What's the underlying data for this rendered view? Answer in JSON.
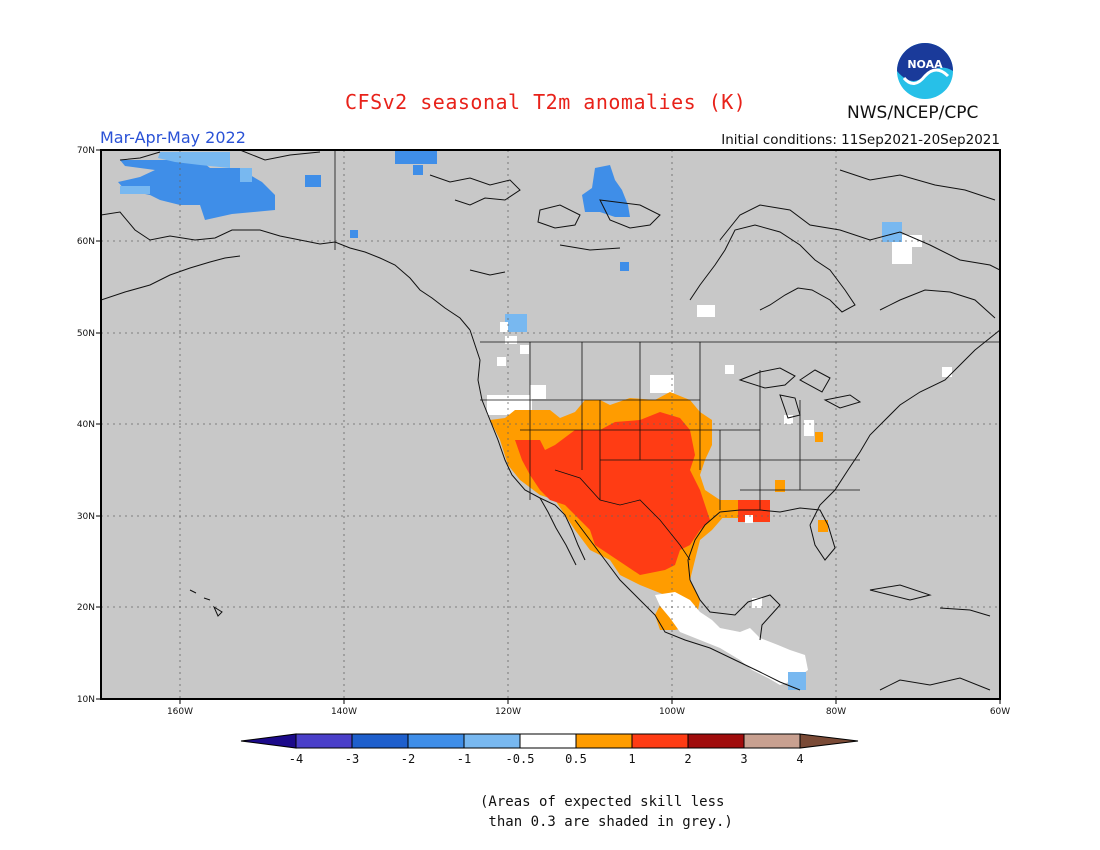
{
  "title": "CFSv2 seasonal T2m anomalies (K)",
  "period": "Mar-Apr-May 2022",
  "initial_conditions": "Initial conditions: 11Sep2021-20Sep2021",
  "agency": "NWS/NCEP/CPC",
  "logo_text": "NOAA",
  "lat_labels": [
    "70N",
    "60N",
    "50N",
    "40N",
    "30N",
    "20N",
    "10N"
  ],
  "lon_labels": [
    "160W",
    "140W",
    "120W",
    "100W",
    "80W",
    "60W"
  ],
  "colorbar": {
    "labels": [
      "-4",
      "-3",
      "-2",
      "-1",
      "-0.5",
      "0.5",
      "1",
      "2",
      "3",
      "4"
    ],
    "colors": [
      "#1c0a8a",
      "#4a3fc9",
      "#1e5fcc",
      "#3f8ee8",
      "#78b8f0",
      "#ffffff",
      "#ff9c00",
      "#ff3c14",
      "#a00c0c",
      "#c8a090",
      "#7a4a36"
    ]
  },
  "background_color": "#c8c8c8",
  "note_line1": "(Areas of expected skill less",
  "note_line2": " than 0.3 are shaded in grey.)"
}
